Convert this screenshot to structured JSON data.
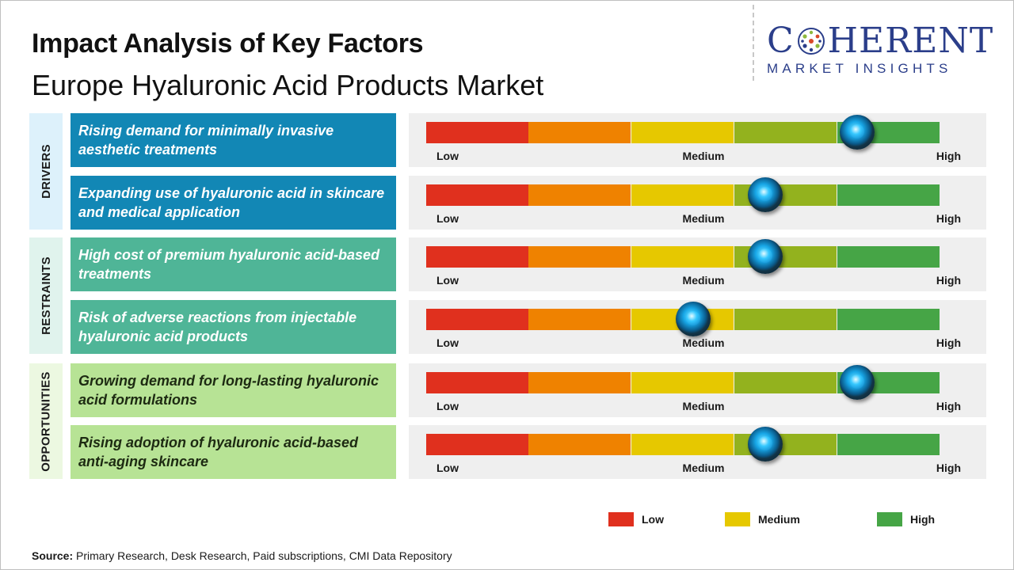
{
  "title": "Impact Analysis of Key Factors",
  "subtitle": "Europe Hyaluronic Acid Products Market",
  "logo": {
    "brand_left": "C",
    "brand_right": "HERENT",
    "tagline": "MARKET INSIGHTS"
  },
  "colors": {
    "drivers_bg": "#1287b5",
    "drivers_cat_bg": "#ddf1fb",
    "restraints_bg": "#4fb597",
    "restraints_cat_bg": "#e0f3ed",
    "opportunities_bg": "#b7e395",
    "opportunities_cat_bg": "#ecf8e1",
    "segments": [
      "#e0301e",
      "#ef8200",
      "#e6c800",
      "#93b21e",
      "#46a546"
    ]
  },
  "chart_data": {
    "type": "gauge",
    "scale_labels": [
      "Low",
      "Medium",
      "High"
    ],
    "categories": [
      {
        "name": "DRIVERS",
        "factors": [
          {
            "text": "Rising demand for minimally invasive aesthetic treatments",
            "impact": 0.84
          },
          {
            "text": "Expanding use of hyaluronic acid in skincare and medical application",
            "impact": 0.66
          }
        ]
      },
      {
        "name": "RESTRAINTS",
        "factors": [
          {
            "text": "High cost of premium hyaluronic acid-based treatments",
            "impact": 0.66
          },
          {
            "text": "Risk of adverse reactions from injectable hyaluronic acid products",
            "impact": 0.52
          }
        ]
      },
      {
        "name": "OPPORTUNITIES",
        "factors": [
          {
            "text": "Growing demand for long-lasting hyaluronic acid formulations",
            "impact": 0.84
          },
          {
            "text": "Rising adoption of hyaluronic acid-based anti-aging skincare",
            "impact": 0.66
          }
        ]
      }
    ],
    "legend": [
      {
        "label": "Low",
        "color": "#e0301e"
      },
      {
        "label": "Medium",
        "color": "#e6c800"
      },
      {
        "label": "High",
        "color": "#46a546"
      }
    ]
  },
  "source": {
    "label": "Source:",
    "text": "Primary Research, Desk Research, Paid subscriptions, CMI Data Repository"
  }
}
